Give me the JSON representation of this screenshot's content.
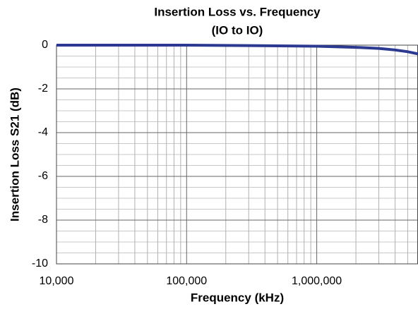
{
  "chart_data": {
    "type": "line",
    "title": "Insertion Loss vs. Frequency",
    "subtitle": "(IO to IO)",
    "x_label": "Frequency (kHz)",
    "y_label": "Insertion Loss S21 (dB)",
    "x_scale": "log",
    "grid": true,
    "xlim": [
      10000,
      6000000
    ],
    "xticks": [
      {
        "value": 10000,
        "label": "10,000"
      },
      {
        "value": 100000,
        "label": "100,000"
      },
      {
        "value": 1000000,
        "label": "1,000,000"
      }
    ],
    "xminorticks": [
      20000,
      30000,
      40000,
      50000,
      60000,
      70000,
      80000,
      90000,
      200000,
      300000,
      400000,
      500000,
      600000,
      700000,
      800000,
      900000,
      2000000,
      3000000,
      4000000,
      5000000
    ],
    "ylim": [
      -10,
      0
    ],
    "yticks": [
      0,
      -2,
      -4,
      -6,
      -8,
      -10
    ],
    "yminorticks": [
      -0.5,
      -1,
      -1.5,
      -2.5,
      -3,
      -3.5,
      -4.5,
      -5,
      -5.5,
      -6.5,
      -7,
      -7.5,
      -8.5,
      -9,
      -9.5
    ],
    "series": [
      {
        "color": "#2b3990",
        "x": [
          10000,
          100000,
          300000,
          1000000,
          2000000,
          3000000,
          4000000,
          5000000,
          6000000
        ],
        "values": [
          0,
          0,
          -0.02,
          -0.05,
          -0.1,
          -0.15,
          -0.22,
          -0.3,
          -0.4
        ]
      }
    ]
  }
}
